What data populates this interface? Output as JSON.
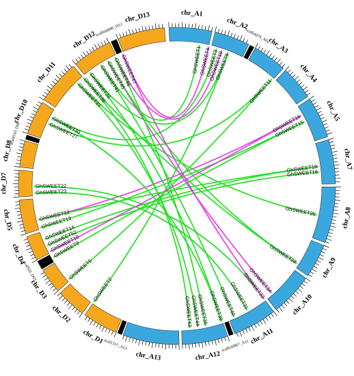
{
  "colors": {
    "A": "#3aa8df",
    "D": "#f5a81e",
    "scaffold": "#000000",
    "segmental": "#22dd22",
    "tandem": "#e040e0"
  },
  "chromosomes": [
    {
      "name": "chr_A1",
      "sub": "A",
      "start": 2,
      "end": 31
    },
    {
      "name": "chr_A2",
      "sub": "A",
      "start": 33,
      "end": 57
    },
    {
      "name": "scaffold76_A02",
      "sub": "S",
      "start": 58,
      "end": 61
    },
    {
      "name": "chr_A3",
      "sub": "A",
      "start": 62,
      "end": 85
    },
    {
      "name": "chr_A4",
      "sub": "A",
      "start": 87,
      "end": 110
    },
    {
      "name": "chr_A5",
      "sub": "A",
      "start": 112,
      "end": 140
    },
    {
      "name": "chr_A7",
      "sub": "A",
      "start": 142,
      "end": 172
    },
    {
      "name": "chr_A8",
      "sub": "A",
      "start": 174,
      "end": 212
    },
    {
      "name": "chr_A9",
      "sub": "A",
      "start": 214,
      "end": 237
    },
    {
      "name": "chr_A10",
      "sub": "A",
      "start": 239,
      "end": 268
    },
    {
      "name": "chr_A11",
      "sub": "A",
      "start": 270,
      "end": 300
    },
    {
      "name": "scaffold867_A11",
      "sub": "S",
      "start": 301,
      "end": 304
    },
    {
      "name": "chr_A12",
      "sub": "A",
      "start": 305,
      "end": 336
    },
    {
      "name": "chr_A13",
      "sub": "A",
      "start": 338,
      "end": 376
    },
    {
      "name": "scaf1357_A13",
      "sub": "S",
      "start": 377,
      "end": 380
    },
    {
      "name": "chr_D1",
      "sub": "D",
      "start": 381,
      "end": 405
    },
    {
      "name": "chr_D2",
      "sub": "D",
      "start": 407,
      "end": 427
    },
    {
      "name": "chr_D3",
      "sub": "D",
      "start": 429,
      "end": 446
    },
    {
      "name": "scaf920_D03",
      "sub": "S",
      "start": 447,
      "end": 453
    },
    {
      "name": "chr_D4",
      "sub": "D",
      "start": 454,
      "end": 471
    },
    {
      "name": "chr_D5",
      "sub": "D",
      "start": 473,
      "end": 496
    },
    {
      "name": "chr_D7",
      "sub": "D",
      "start": 498,
      "end": 516
    },
    {
      "name": "chr_D8",
      "sub": "D",
      "start": 518,
      "end": 536
    },
    {
      "name": "scaf4310_D08",
      "sub": "S",
      "start": 537,
      "end": 540
    },
    {
      "name": "chr_D10",
      "sub": "D",
      "start": 541,
      "end": 564
    },
    {
      "name": "chr_D11",
      "sub": "D",
      "start": 566,
      "end": 596
    },
    {
      "name": "chr_D12",
      "sub": "D",
      "start": 598,
      "end": 625
    },
    {
      "name": "scaffold080_D12",
      "sub": "S",
      "start": 626,
      "end": 630
    },
    {
      "name": "chr_D13",
      "sub": "D",
      "start": 631,
      "end": 663
    }
  ],
  "genes": [
    {
      "id": "GhSWEET1",
      "pos": 24
    },
    {
      "id": "GhSWEET4",
      "pos": 31
    },
    {
      "id": "GhSWEET3",
      "pos": 37
    },
    {
      "id": "GhSWEET10",
      "pos": 41
    },
    {
      "id": "GhSWEET8",
      "pos": 46
    },
    {
      "id": "GhSWEET11",
      "pos": 84
    },
    {
      "id": "GhSWEET16",
      "pos": 119
    },
    {
      "id": "GhSWEET15",
      "pos": 124
    },
    {
      "id": "GhSWEET19",
      "pos": 159
    },
    {
      "id": "GhSWEET18",
      "pos": 163
    },
    {
      "id": "GhSWEET26",
      "pos": 195
    },
    {
      "id": "GhSWEET28",
      "pos": 234
    },
    {
      "id": "GhSWEET34",
      "pos": 263
    },
    {
      "id": "GhSWEET32",
      "pos": 270
    },
    {
      "id": "GhSWEET31",
      "pos": 285
    },
    {
      "id": "GhSWEET40",
      "pos": 296
    },
    {
      "id": "GhSWEET39",
      "pos": 306
    },
    {
      "id": "GhSWEET35",
      "pos": 318
    },
    {
      "id": "GhSWEET44",
      "pos": 324
    },
    {
      "id": "GhSWEET43",
      "pos": 330
    },
    {
      "id": "GhSWEET2",
      "pos": 405
    },
    {
      "id": "GhSWEET6",
      "pos": 430
    },
    {
      "id": "GhSWEET9",
      "pos": 450
    },
    {
      "id": "GhSWEET10",
      "pos": 455
    },
    {
      "id": "GhSWEET52",
      "pos": 460
    },
    {
      "id": "GhSWEET14",
      "pos": 465
    },
    {
      "id": "GhSWEET13",
      "pos": 474
    },
    {
      "id": "GhSWEET12",
      "pos": 480
    },
    {
      "id": "GhSWEET23",
      "pos": 500
    },
    {
      "id": "GhSWEET22",
      "pos": 505
    },
    {
      "id": "GhSWEET27",
      "pos": 553
    },
    {
      "id": "GhSWEET30",
      "pos": 558
    },
    {
      "id": "GhSWEET33",
      "pos": 590
    },
    {
      "id": "GhSWEET36",
      "pos": 596
    },
    {
      "id": "GhSWEET38",
      "pos": 602
    },
    {
      "id": "GhSWEET41",
      "pos": 612
    },
    {
      "id": "GhSWEET45",
      "pos": 618
    },
    {
      "id": "GhSWEET46",
      "pos": 624
    },
    {
      "id": "GhSWEET47",
      "pos": 630
    }
  ],
  "links": [
    {
      "a": 24,
      "b": 612,
      "type": "segmental"
    },
    {
      "a": 31,
      "b": 630,
      "type": "tandem"
    },
    {
      "a": 37,
      "b": 558,
      "type": "segmental"
    },
    {
      "a": 41,
      "b": 624,
      "type": "tandem"
    },
    {
      "a": 46,
      "b": 602,
      "type": "segmental"
    },
    {
      "a": 84,
      "b": 553,
      "type": "segmental"
    },
    {
      "a": 119,
      "b": 480,
      "type": "tandem"
    },
    {
      "a": 124,
      "b": 474,
      "type": "segmental"
    },
    {
      "a": 159,
      "b": 465,
      "type": "segmental"
    },
    {
      "a": 163,
      "b": 460,
      "type": "segmental"
    },
    {
      "a": 195,
      "b": 590,
      "type": "segmental"
    },
    {
      "a": 234,
      "b": 596,
      "type": "segmental"
    },
    {
      "a": 263,
      "b": 618,
      "type": "tandem"
    },
    {
      "a": 270,
      "b": 505,
      "type": "segmental"
    },
    {
      "a": 285,
      "b": 500,
      "type": "segmental"
    },
    {
      "a": 296,
      "b": 612,
      "type": "segmental"
    },
    {
      "a": 306,
      "b": 602,
      "type": "segmental"
    },
    {
      "a": 318,
      "b": 624,
      "type": "segmental"
    },
    {
      "a": 324,
      "b": 590,
      "type": "segmental"
    },
    {
      "a": 330,
      "b": 596,
      "type": "segmental"
    },
    {
      "a": 405,
      "b": 46,
      "type": "segmental"
    },
    {
      "a": 430,
      "b": 84,
      "type": "segmental"
    },
    {
      "a": 450,
      "b": 124,
      "type": "segmental"
    },
    {
      "a": 455,
      "b": 119,
      "type": "tandem"
    },
    {
      "a": 480,
      "b": 159,
      "type": "segmental"
    },
    {
      "a": 618,
      "b": 234,
      "type": "segmental"
    },
    {
      "a": 630,
      "b": 270,
      "type": "tandem"
    },
    {
      "a": 558,
      "b": 306,
      "type": "segmental"
    }
  ]
}
